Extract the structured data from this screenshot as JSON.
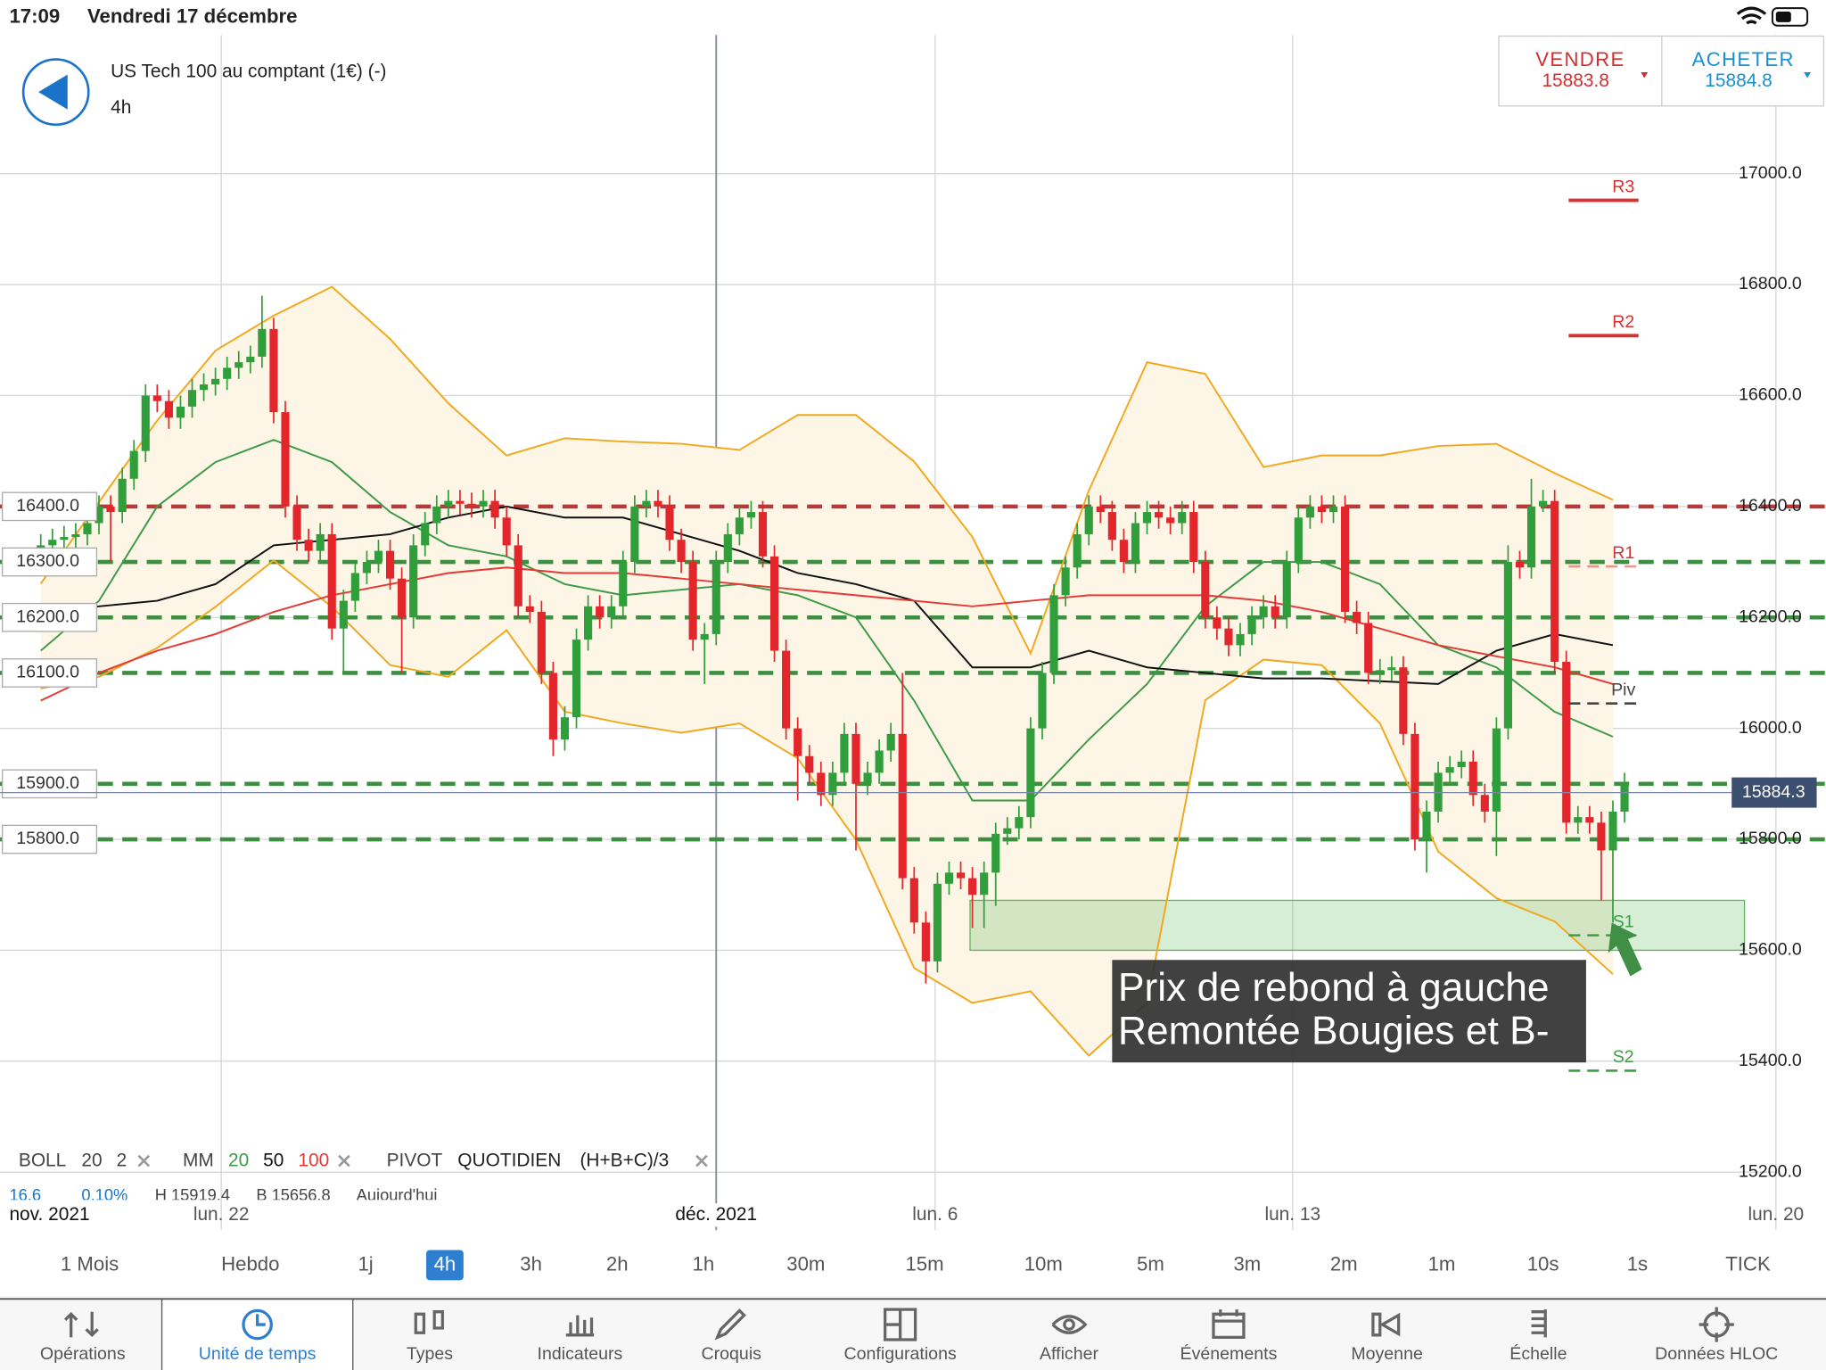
{
  "status_bar": {
    "time": "17:09",
    "date": "Vendredi 17 décembre"
  },
  "header": {
    "instrument": "US Tech 100 au comptant (1€) (-)",
    "timeframe": "4h"
  },
  "quote": {
    "sell": {
      "label": "VENDRE",
      "price": "15883.8"
    },
    "buy": {
      "label": "ACHETER",
      "price": "15884.8"
    }
  },
  "chart_data": {
    "type": "candlestick",
    "open": [
      16320,
      16330,
      16340,
      16345,
      16350,
      16370,
      16400,
      16390,
      16450,
      16500,
      16600,
      16590,
      16560,
      16580,
      16610,
      16620,
      16630,
      16650,
      16660,
      16670,
      16720,
      16570,
      16400,
      16340,
      16320,
      16350,
      16180,
      16230,
      16280,
      16300,
      16320,
      16270,
      16200,
      16330,
      16370,
      16400,
      16410,
      16405,
      16400,
      16410,
      16380,
      16330,
      16220,
      16210,
      16100,
      15980,
      16020,
      16160,
      16220,
      16200,
      16220,
      16300,
      16400,
      16410,
      16400,
      16340,
      16300,
      16160,
      16170,
      16300,
      16350,
      16380,
      16390,
      16310,
      16140,
      16000,
      15950,
      15920,
      15880,
      15920,
      15990,
      15900,
      15920,
      15960,
      15990,
      15730,
      15650,
      15580,
      15720,
      15740,
      15730,
      15700,
      15740,
      15810,
      15820,
      15840,
      16000,
      16100,
      16240,
      16290,
      16350,
      16400,
      16390,
      16340,
      16300,
      16370,
      16390,
      16380,
      16370,
      16390,
      16300,
      16200,
      16180,
      16150,
      16170,
      16200,
      16220,
      16200,
      16300,
      16380,
      16400,
      16390,
      16400,
      16210,
      16190,
      16100,
      16105,
      16110,
      15990,
      15800,
      15850,
      15920,
      15930,
      15940,
      15880,
      15850,
      16000,
      16300,
      16290,
      16400,
      16410,
      16120,
      15830,
      15840,
      15830,
      15780,
      15850
    ],
    "high": [
      16350,
      16360,
      16365,
      16370,
      16390,
      16420,
      16420,
      16470,
      16520,
      16620,
      16620,
      16610,
      16600,
      16630,
      16640,
      16650,
      16670,
      16680,
      16690,
      16780,
      16740,
      16590,
      16420,
      16360,
      16370,
      16370,
      16250,
      16300,
      16320,
      16340,
      16340,
      16290,
      16350,
      16390,
      16420,
      16430,
      16430,
      16425,
      16430,
      16430,
      16400,
      16350,
      16240,
      16230,
      16120,
      16040,
      16180,
      16240,
      16240,
      16240,
      16320,
      16420,
      16430,
      16430,
      16420,
      16360,
      16320,
      16190,
      16320,
      16370,
      16400,
      16410,
      16410,
      16330,
      16160,
      16020,
      15970,
      15940,
      15940,
      16010,
      16010,
      15940,
      15980,
      16010,
      16100,
      15750,
      15670,
      15740,
      15760,
      15760,
      15750,
      15760,
      15830,
      15840,
      15860,
      16020,
      16120,
      16260,
      16310,
      16370,
      16420,
      16420,
      16410,
      16360,
      16390,
      16410,
      16410,
      16400,
      16410,
      16410,
      16320,
      16220,
      16200,
      16190,
      16220,
      16240,
      16240,
      16320,
      16400,
      16420,
      16420,
      16420,
      16420,
      16230,
      16210,
      16125,
      16130,
      16130,
      16010,
      15870,
      15940,
      15950,
      15960,
      15960,
      15900,
      16020,
      16330,
      16320,
      16450,
      16430,
      16430,
      16140,
      15860,
      15860,
      15850,
      15870,
      15920
    ],
    "low": [
      16300,
      16310,
      16320,
      16325,
      16330,
      16350,
      16300,
      16370,
      16430,
      16480,
      16570,
      16540,
      16540,
      16560,
      16590,
      16600,
      16610,
      16630,
      16640,
      16650,
      16550,
      16380,
      16320,
      16300,
      16300,
      16160,
      16100,
      16210,
      16260,
      16280,
      16250,
      16100,
      16180,
      16310,
      16350,
      16380,
      16385,
      16380,
      16380,
      16360,
      16310,
      16200,
      16190,
      16080,
      15950,
      15960,
      16000,
      16140,
      16180,
      16180,
      16200,
      16280,
      16380,
      16380,
      16320,
      16280,
      16140,
      16080,
      16150,
      16280,
      16330,
      16360,
      16290,
      16120,
      15980,
      15870,
      15900,
      15860,
      15860,
      15900,
      15780,
      15880,
      15900,
      15940,
      15710,
      15630,
      15540,
      15560,
      15700,
      15710,
      15640,
      15640,
      15680,
      15790,
      15800,
      15820,
      15980,
      16080,
      16220,
      16270,
      16330,
      16370,
      16320,
      16280,
      16280,
      16350,
      16360,
      16350,
      16350,
      16280,
      16180,
      16160,
      16130,
      16130,
      16150,
      16180,
      16180,
      16180,
      16280,
      16360,
      16370,
      16370,
      16190,
      16170,
      16080,
      16080,
      16085,
      15970,
      15780,
      15740,
      15830,
      15900,
      15910,
      15860,
      15830,
      15770,
      15980,
      16270,
      16270,
      16390,
      16100,
      15810,
      15810,
      15810,
      15690,
      15650,
      15830
    ],
    "close": [
      16330,
      16340,
      16345,
      16350,
      16370,
      16400,
      16390,
      16450,
      16500,
      16600,
      16590,
      16560,
      16580,
      16610,
      16620,
      16630,
      16650,
      16660,
      16670,
      16720,
      16570,
      16400,
      16340,
      16320,
      16350,
      16180,
      16230,
      16280,
      16300,
      16320,
      16270,
      16200,
      16330,
      16370,
      16400,
      16410,
      16405,
      16400,
      16410,
      16380,
      16330,
      16220,
      16210,
      16100,
      15980,
      16020,
      16160,
      16220,
      16200,
      16220,
      16300,
      16400,
      16410,
      16400,
      16340,
      16300,
      16160,
      16170,
      16300,
      16350,
      16380,
      16390,
      16310,
      16140,
      16000,
      15950,
      15920,
      15880,
      15920,
      15990,
      15900,
      15920,
      15960,
      15990,
      15730,
      15650,
      15580,
      15720,
      15740,
      15730,
      15700,
      15740,
      15810,
      15820,
      15840,
      16000,
      16100,
      16240,
      16290,
      16350,
      16400,
      16390,
      16340,
      16300,
      16370,
      16390,
      16380,
      16370,
      16390,
      16300,
      16200,
      16180,
      16150,
      16170,
      16200,
      16220,
      16200,
      16300,
      16380,
      16400,
      16390,
      16400,
      16210,
      16190,
      16100,
      16105,
      16110,
      15990,
      15800,
      15850,
      15920,
      15930,
      15940,
      15880,
      15850,
      16000,
      16300,
      16290,
      16400,
      16410,
      16120,
      15830,
      15840,
      15830,
      15780,
      15850,
      15900
    ],
    "up_color": "#2f9e3b",
    "down_color": "#e3262b",
    "ylim": [
      15150,
      17250
    ],
    "yticks": [
      {
        "value": 15200,
        "label": "15200.0"
      },
      {
        "value": 15400,
        "label": "15400.0"
      },
      {
        "value": 15600,
        "label": "15600.0"
      },
      {
        "value": 15800,
        "label": "15800.0"
      },
      {
        "value": 16000,
        "label": "16000.0"
      },
      {
        "value": 16200,
        "label": "16200.0"
      },
      {
        "value": 16400,
        "label": "16400.0"
      },
      {
        "value": 16600,
        "label": "16600.0"
      },
      {
        "value": 16800,
        "label": "16800.0"
      },
      {
        "value": 17000,
        "label": "17000.0"
      }
    ],
    "grid": true,
    "time_labels": [
      "nov. 2021",
      "lun. 22",
      "déc. 2021",
      "lun. 6",
      "lun. 13",
      "lun. 20"
    ],
    "band": {
      "color": "#f2a81d",
      "fill": "#fdf5e6",
      "upper": [
        16261,
        16408,
        16555,
        16681,
        16744,
        16796,
        16702,
        16586,
        16492,
        16523,
        16517,
        16513,
        16502,
        16565,
        16565,
        16481,
        16345,
        16135,
        16429,
        16660,
        16639,
        16471,
        16492,
        16492,
        16509,
        16513,
        16460,
        16412
      ],
      "lower": [
        16072,
        16093,
        16145,
        16219,
        16303,
        16219,
        16114,
        16093,
        16177,
        16030,
        16009,
        15992,
        16009,
        15946,
        15799,
        15568,
        15505,
        15526,
        15410,
        15505,
        16051,
        16124,
        16114,
        16009,
        15778,
        15694,
        15652,
        15557
      ]
    },
    "lines": [
      {
        "color": "#3d9a47",
        "values": [
          16140,
          16230,
          16400,
          16480,
          16520,
          16480,
          16390,
          16330,
          16310,
          16260,
          16240,
          16250,
          16260,
          16240,
          16200,
          16050,
          15870,
          15870,
          15980,
          16080,
          16220,
          16300,
          16300,
          16260,
          16150,
          16110,
          16030,
          15985
        ]
      },
      {
        "color": "#111111",
        "values": [
          16210,
          16220,
          16230,
          16260,
          16330,
          16340,
          16350,
          16380,
          16400,
          16380,
          16380,
          16350,
          16320,
          16280,
          16260,
          16230,
          16110,
          16110,
          16140,
          16110,
          16100,
          16090,
          16090,
          16085,
          16080,
          16140,
          16170,
          16150
        ]
      },
      {
        "color": "#e53935",
        "values": [
          16050,
          16100,
          16140,
          16170,
          16210,
          16240,
          16260,
          16280,
          16290,
          16280,
          16280,
          16270,
          16260,
          16250,
          16240,
          16230,
          16220,
          16230,
          16240,
          16240,
          16240,
          16230,
          16210,
          16180,
          16150,
          16130,
          16110,
          16080
        ]
      }
    ],
    "levels": [
      {
        "value": 16400,
        "label": "16400.0",
        "color": "#b53a3a"
      },
      {
        "value": 16300,
        "label": "16300.0",
        "color": "#3e8e41"
      },
      {
        "value": 16200,
        "label": "16200.0",
        "color": "#3e8e41"
      },
      {
        "value": 16100,
        "label": "16100.0",
        "color": "#3e8e41"
      },
      {
        "value": 15900,
        "label": "15900.0",
        "color": "#3e8e41"
      },
      {
        "value": 15800,
        "label": "15800.0",
        "color": "#3e8e41"
      }
    ],
    "pivots": [
      {
        "label": "R3",
        "value": 16952,
        "color": "#d93030"
      },
      {
        "label": "R2",
        "value": 16708,
        "color": "#d93030"
      },
      {
        "label": "R1",
        "value": 16292,
        "color": "#d93030"
      },
      {
        "label": "Piv",
        "value": 16045,
        "color": "#444444"
      },
      {
        "label": "S1",
        "value": 15627,
        "color": "#3e9e44"
      },
      {
        "label": "S2",
        "value": 15383,
        "color": "#3e9e44"
      }
    ],
    "price": {
      "value": 15884.3,
      "label": "15884.3"
    },
    "zone": {
      "from": 15600,
      "to": 15690,
      "color": "#5cb85c"
    },
    "annotation": [
      "Prix de rebond à gauche",
      "Remontée Bougies et B-"
    ]
  },
  "legend": [
    {
      "name": "BOLL",
      "params": [
        "20",
        "2"
      ]
    },
    {
      "name": "MM",
      "params": [
        "20",
        "50",
        "100"
      ]
    },
    {
      "name": "PIVOT",
      "params": [
        "QUOTIDIEN",
        "(H+B+C)/3"
      ]
    }
  ],
  "stats": [
    "16.6",
    "0.10%",
    "H 15919.4",
    "B 15656.8",
    "Aujourd'hui"
  ],
  "timeframes": {
    "items": [
      "1 Mois",
      "Hebdo",
      "1j",
      "4h",
      "3h",
      "2h",
      "1h",
      "30m",
      "15m",
      "10m",
      "5m",
      "3m",
      "2m",
      "1m",
      "10s",
      "1s",
      "TICK"
    ],
    "selected": 3
  },
  "toolbar": {
    "items": [
      "Opérations",
      "Unité de temps",
      "Types",
      "Indicateurs",
      "Croquis",
      "Configurations",
      "Afficher",
      "Événements",
      "Moyenne",
      "Échelle",
      "Données HLOC"
    ],
    "selected": 1
  }
}
